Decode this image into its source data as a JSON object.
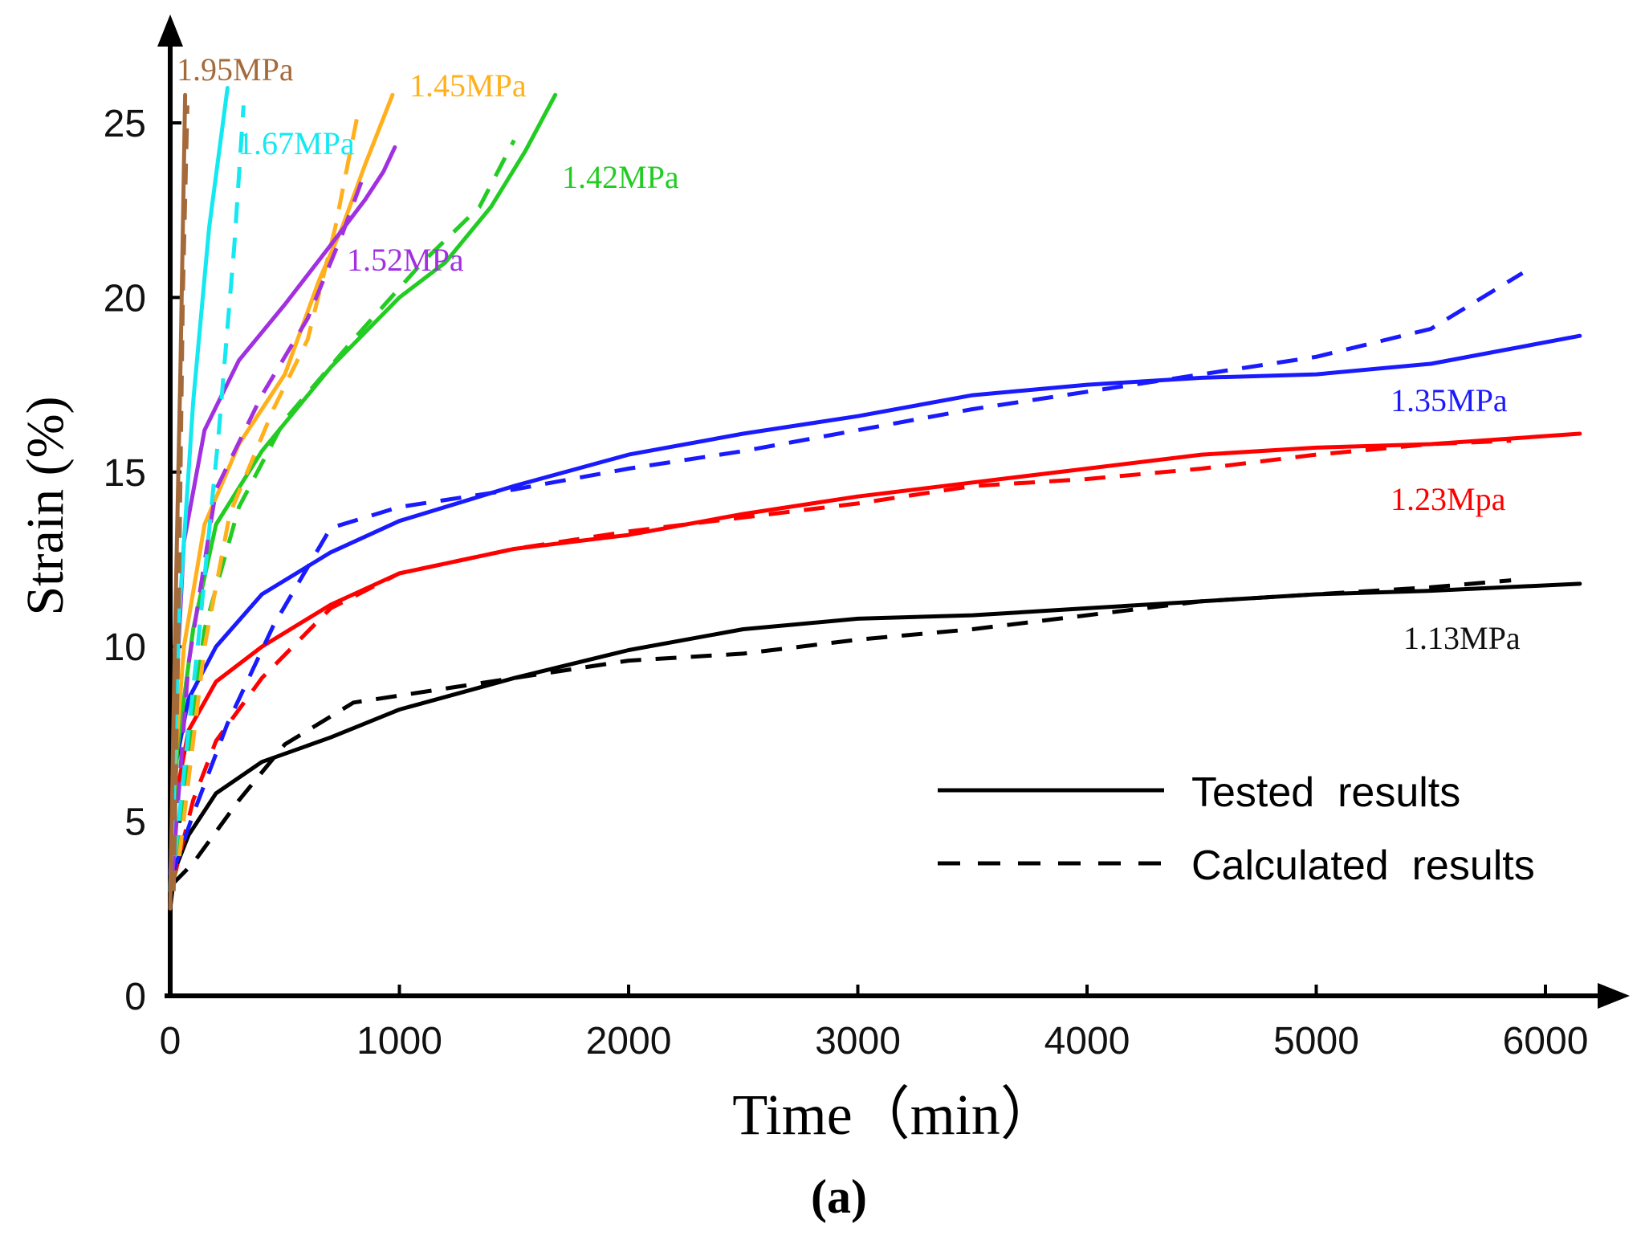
{
  "chart_data": {
    "type": "line",
    "xlabel": "Time（min）",
    "ylabel": "Strain (%)",
    "panel_label": "(a)",
    "xlim": [
      0,
      6300
    ],
    "ylim": [
      0,
      27.5
    ],
    "xticks": [
      0,
      1000,
      2000,
      3000,
      4000,
      5000,
      6000
    ],
    "yticks": [
      0,
      5,
      10,
      15,
      20,
      25
    ],
    "legend": {
      "placement": "bottom-right",
      "solid_label": "Tested  results",
      "dashed_label": "Calculated  results"
    },
    "series": [
      {
        "name": "1.13MPa",
        "color": "#000000",
        "tested": [
          [
            0,
            2.5
          ],
          [
            20,
            3.6
          ],
          [
            80,
            4.6
          ],
          [
            200,
            5.8
          ],
          [
            400,
            6.7
          ],
          [
            700,
            7.4
          ],
          [
            1000,
            8.2
          ],
          [
            1500,
            9.1
          ],
          [
            2000,
            9.9
          ],
          [
            2500,
            10.5
          ],
          [
            3000,
            10.8
          ],
          [
            3500,
            10.9
          ],
          [
            4000,
            11.1
          ],
          [
            4500,
            11.3
          ],
          [
            5000,
            11.5
          ],
          [
            5500,
            11.6
          ],
          [
            6150,
            11.8
          ]
        ],
        "calculated": [
          [
            10,
            3.2
          ],
          [
            100,
            3.8
          ],
          [
            300,
            5.6
          ],
          [
            500,
            7.2
          ],
          [
            800,
            8.4
          ],
          [
            1000,
            8.6
          ],
          [
            1500,
            9.1
          ],
          [
            2000,
            9.6
          ],
          [
            2500,
            9.8
          ],
          [
            3000,
            10.2
          ],
          [
            3500,
            10.5
          ],
          [
            4000,
            10.9
          ],
          [
            4500,
            11.3
          ],
          [
            5000,
            11.5
          ],
          [
            5500,
            11.7
          ],
          [
            5850,
            11.9
          ]
        ]
      },
      {
        "name": "1.23Mpa",
        "color": "#ff0000",
        "tested": [
          [
            0,
            3.0
          ],
          [
            20,
            5.5
          ],
          [
            80,
            7.6
          ],
          [
            200,
            9.0
          ],
          [
            400,
            10.0
          ],
          [
            700,
            11.2
          ],
          [
            1000,
            12.1
          ],
          [
            1500,
            12.8
          ],
          [
            2000,
            13.2
          ],
          [
            2500,
            13.8
          ],
          [
            3000,
            14.3
          ],
          [
            3500,
            14.7
          ],
          [
            4000,
            15.1
          ],
          [
            4500,
            15.5
          ],
          [
            5000,
            15.7
          ],
          [
            5500,
            15.8
          ],
          [
            6150,
            16.1
          ]
        ],
        "calculated": [
          [
            10,
            3.2
          ],
          [
            100,
            5.6
          ],
          [
            200,
            7.3
          ],
          [
            400,
            9.1
          ],
          [
            700,
            11.1
          ],
          [
            1000,
            12.1
          ],
          [
            1500,
            12.8
          ],
          [
            2000,
            13.3
          ],
          [
            2500,
            13.7
          ],
          [
            3000,
            14.1
          ],
          [
            3500,
            14.6
          ],
          [
            4000,
            14.8
          ],
          [
            4500,
            15.1
          ],
          [
            5000,
            15.5
          ],
          [
            5500,
            15.8
          ],
          [
            5850,
            15.9
          ]
        ]
      },
      {
        "name": "1.35MPa",
        "color": "#1a1aff",
        "tested": [
          [
            0,
            3.5
          ],
          [
            20,
            6.5
          ],
          [
            80,
            8.5
          ],
          [
            200,
            10.0
          ],
          [
            400,
            11.5
          ],
          [
            700,
            12.7
          ],
          [
            1000,
            13.6
          ],
          [
            1500,
            14.6
          ],
          [
            2000,
            15.5
          ],
          [
            2500,
            16.1
          ],
          [
            3000,
            16.6
          ],
          [
            3500,
            17.2
          ],
          [
            4000,
            17.5
          ],
          [
            4500,
            17.7
          ],
          [
            5000,
            17.8
          ],
          [
            5500,
            18.1
          ],
          [
            6150,
            18.9
          ]
        ],
        "calculated": [
          [
            10,
            3.5
          ],
          [
            100,
            5.2
          ],
          [
            250,
            7.8
          ],
          [
            450,
            10.6
          ],
          [
            700,
            13.4
          ],
          [
            1000,
            14.0
          ],
          [
            1500,
            14.5
          ],
          [
            2000,
            15.1
          ],
          [
            2500,
            15.6
          ],
          [
            3000,
            16.2
          ],
          [
            3500,
            16.8
          ],
          [
            4000,
            17.3
          ],
          [
            4500,
            17.8
          ],
          [
            5000,
            18.3
          ],
          [
            5500,
            19.1
          ],
          [
            5900,
            20.7
          ]
        ]
      },
      {
        "name": "1.42MPa",
        "color": "#22cc22",
        "tested": [
          [
            0,
            3.0
          ],
          [
            30,
            7.0
          ],
          [
            100,
            10.5
          ],
          [
            200,
            13.5
          ],
          [
            400,
            15.6
          ],
          [
            700,
            18.0
          ],
          [
            1000,
            20.0
          ],
          [
            1200,
            21.0
          ],
          [
            1400,
            22.6
          ],
          [
            1550,
            24.2
          ],
          [
            1680,
            25.8
          ]
        ],
        "calculated": [
          [
            10,
            3.0
          ],
          [
            60,
            6.0
          ],
          [
            150,
            10.5
          ],
          [
            300,
            14.0
          ],
          [
            500,
            16.5
          ],
          [
            800,
            18.8
          ],
          [
            1100,
            21.0
          ],
          [
            1350,
            22.6
          ],
          [
            1500,
            24.5
          ]
        ]
      },
      {
        "name": "1.45MPa",
        "color": "#ffb01c",
        "tested": [
          [
            0,
            3.0
          ],
          [
            20,
            6.5
          ],
          [
            60,
            10.0
          ],
          [
            150,
            13.5
          ],
          [
            300,
            15.8
          ],
          [
            500,
            17.8
          ],
          [
            650,
            20.5
          ],
          [
            750,
            22.0
          ],
          [
            850,
            23.8
          ],
          [
            970,
            25.8
          ]
        ],
        "calculated": [
          [
            40,
            4.0
          ],
          [
            150,
            10.0
          ],
          [
            260,
            13.8
          ],
          [
            450,
            16.8
          ],
          [
            600,
            18.8
          ],
          [
            720,
            22.0
          ],
          [
            780,
            24.0
          ],
          [
            820,
            25.3
          ]
        ]
      },
      {
        "name": "1.52MPa",
        "color": "#a030e0",
        "tested": [
          [
            0,
            3.0
          ],
          [
            20,
            8.0
          ],
          [
            60,
            13.0
          ],
          [
            150,
            16.2
          ],
          [
            300,
            18.2
          ],
          [
            500,
            19.8
          ],
          [
            700,
            21.5
          ],
          [
            850,
            22.8
          ],
          [
            930,
            23.6
          ],
          [
            980,
            24.3
          ]
        ],
        "calculated": [
          [
            10,
            3.5
          ],
          [
            80,
            9.5
          ],
          [
            200,
            14.5
          ],
          [
            400,
            17.2
          ],
          [
            600,
            19.4
          ],
          [
            750,
            21.8
          ],
          [
            850,
            23.6
          ]
        ]
      },
      {
        "name": "1.67MPa",
        "color": "#14e8f0",
        "tested": [
          [
            0,
            3.0
          ],
          [
            40,
            11.0
          ],
          [
            100,
            17.0
          ],
          [
            170,
            22.0
          ],
          [
            250,
            26.0
          ]
        ],
        "calculated": [
          [
            20,
            4.0
          ],
          [
            120,
            10.0
          ],
          [
            210,
            16.0
          ],
          [
            280,
            21.5
          ],
          [
            320,
            25.5
          ]
        ]
      },
      {
        "name": "1.95MPa",
        "color": "#a56a3a",
        "tested": [
          [
            0,
            2.5
          ],
          [
            20,
            10.0
          ],
          [
            45,
            18.0
          ],
          [
            65,
            25.8
          ]
        ],
        "calculated": [
          [
            15,
            3.0
          ],
          [
            35,
            10.0
          ],
          [
            55,
            20.0
          ],
          [
            75,
            25.5
          ]
        ]
      }
    ]
  },
  "series_labels": [
    "1.95MPa",
    "1.67MPa",
    "1.45MPa",
    "1.42MPa",
    "1.52MPa",
    "1.35MPa",
    "1.23Mpa",
    "1.13MPa"
  ]
}
